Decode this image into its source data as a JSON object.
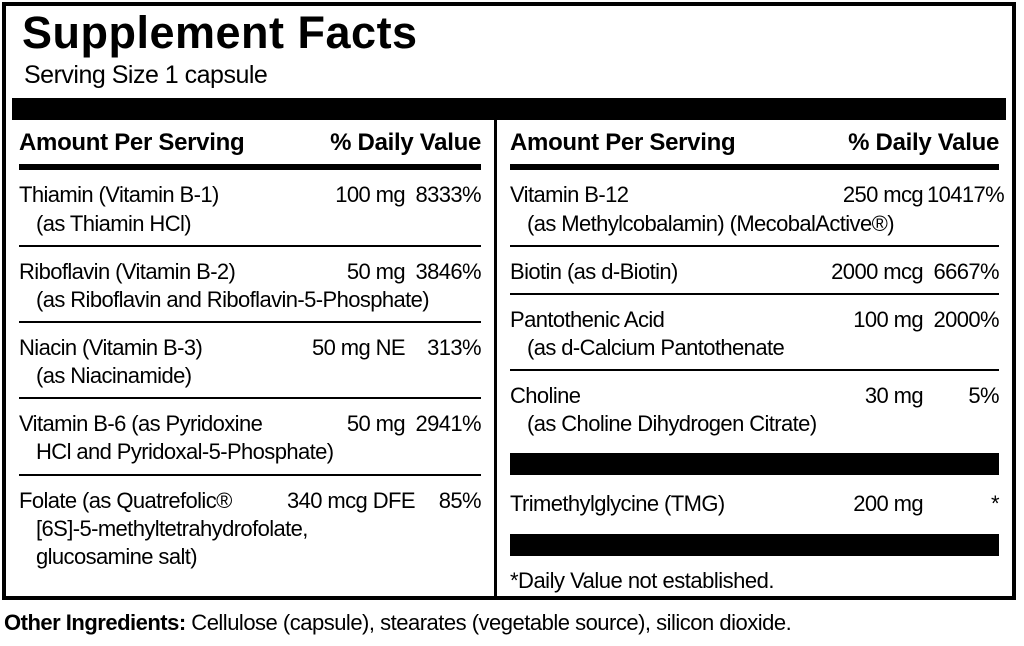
{
  "colors": {
    "ink": "#000000",
    "paper": "#ffffff"
  },
  "label": {
    "title": "Supplement Facts",
    "serving_size": "Serving Size 1 capsule",
    "header": {
      "amount": "Amount Per Serving",
      "dv": "% Daily Value"
    },
    "left": {
      "rows": [
        {
          "name": "Thiamin (Vitamin B-1)",
          "amount": "100 mg",
          "dv": "8333%",
          "sub1": "(as Thiamin HCl)"
        },
        {
          "name": "Riboflavin (Vitamin B-2)",
          "amount": "50 mg",
          "dv": "3846%",
          "sub1": "(as Riboflavin and Riboflavin-5-Phosphate)"
        },
        {
          "name": "Niacin (Vitamin B-3)",
          "amount": "50 mg NE",
          "dv": "313%",
          "sub1": "(as Niacinamide)"
        },
        {
          "name": "Vitamin B-6 (as Pyridoxine",
          "amount": "50 mg",
          "dv": "2941%",
          "sub1": "HCl and Pyridoxal-5-Phosphate)"
        },
        {
          "name": "Folate (as Quatrefolic®",
          "amount": "340 mcg DFE",
          "dv": "85%",
          "sub1": "[6S]-5-methyltetrahydrofolate,",
          "sub2": "glucosamine salt)"
        }
      ]
    },
    "right": {
      "rows": [
        {
          "name": "Vitamin B-12",
          "amount": "250 mcg",
          "dv": "10417%",
          "sub1": "(as Methylcobalamin) (MecobalActive®)"
        },
        {
          "name": "Biotin (as d-Biotin)",
          "amount": "2000 mcg",
          "dv": "6667%"
        },
        {
          "name": "Pantothenic Acid",
          "amount": "100 mg",
          "dv": "2000%",
          "sub1": "(as d-Calcium Pantothenate"
        },
        {
          "name": "Choline",
          "amount": "30 mg",
          "dv": "5%",
          "sub1": "(as Choline Dihydrogen Citrate)"
        },
        {
          "name": "Trimethylglycine (TMG)",
          "amount": "200 mg",
          "dv": "*"
        }
      ],
      "footnote": "*Daily Value not established."
    },
    "other_ingredients": {
      "label": "Other Ingredients:",
      "text": " Cellulose (capsule), stearates (vegetable source), silicon dioxide."
    }
  }
}
